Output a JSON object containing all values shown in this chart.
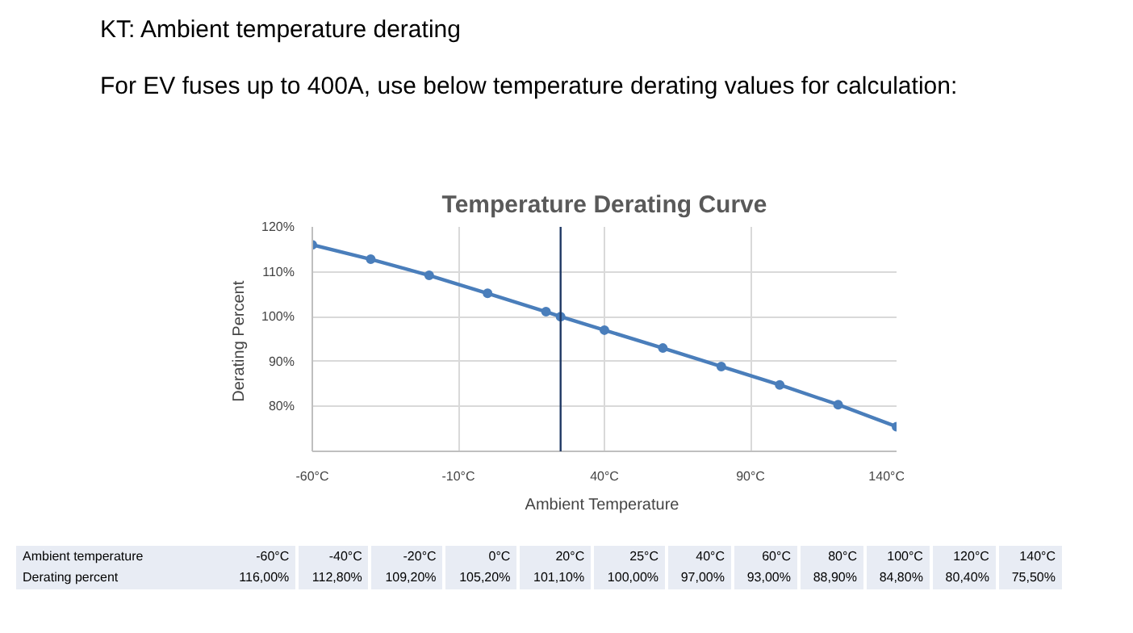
{
  "chart_data": {
    "type": "line",
    "title": "Temperature Derating Curve",
    "xlabel": "Ambient  Temperature",
    "ylabel": "Derating  Percent",
    "annotations": [
      "KT: Ambient temperature derating",
      "For EV fuses up to 400A, use below temperature derating values for calculation:",
      "Ambient temperature",
      "Derating percent",
      "-60°C",
      "-40°C",
      "-20°C",
      "0°C",
      "20°C",
      "25°C",
      "40°C",
      "60°C",
      "80°C",
      "100°C",
      "120°C",
      "140°C",
      "116,00%",
      "112,80%",
      "109,20%",
      "105,20%",
      "101,10%",
      "100,00%",
      "97,00%",
      "93,00%",
      "88,90%",
      "84,80%",
      "80,40%",
      "75,50%"
    ],
    "x": [
      -60,
      -40,
      -20,
      0,
      20,
      25,
      40,
      60,
      80,
      100,
      120,
      140
    ],
    "series": [
      {
        "color": "#4a7ebb",
        "values": [
          116.0,
          112.8,
          109.2,
          105.2,
          101.1,
          100.0,
          97.0,
          93.0,
          88.9,
          84.8,
          80.4,
          75.5
        ]
      }
    ],
    "xlim": [
      -60,
      140
    ],
    "xticks": [
      {
        "value": -60,
        "label": "-60°C"
      },
      {
        "value": -10,
        "label": "-10°C"
      },
      {
        "value": 40,
        "label": "40°C"
      },
      {
        "value": 90,
        "label": "90°C"
      },
      {
        "value": 140,
        "label": "140°C"
      }
    ],
    "ylim": [
      70,
      120
    ],
    "yticks": [
      {
        "value": 80,
        "label": "80%"
      },
      {
        "value": 90,
        "label": "90%"
      },
      {
        "value": 100,
        "label": "100%"
      },
      {
        "value": 110,
        "label": "110%"
      },
      {
        "value": 120,
        "label": "120%"
      }
    ],
    "ref_lines": [
      {
        "axis": "x",
        "value": 25,
        "color": "#1f3864"
      }
    ],
    "grid": true,
    "marker": "circle",
    "line_style": "solid"
  }
}
